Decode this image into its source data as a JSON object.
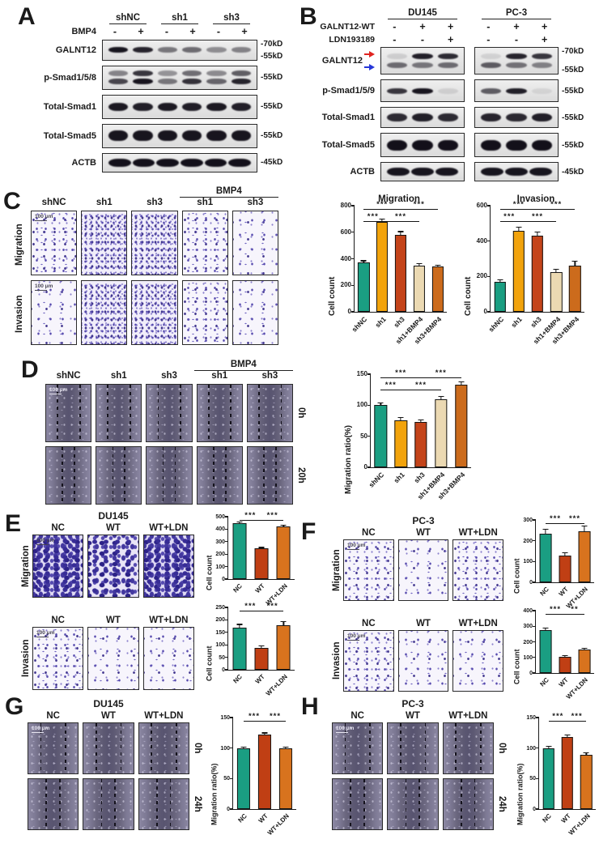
{
  "misc": {
    "scale_bar": "100 μm"
  },
  "panels": {
    "a": {
      "label": "A",
      "groups": [
        "shNC",
        "sh1",
        "sh3"
      ],
      "treatment": {
        "label": "BMP4",
        "values": [
          "-",
          "+",
          "-",
          "+",
          "-",
          "+"
        ]
      },
      "rows": [
        {
          "name": "GALNT12",
          "markers": [
            "-70kD",
            "-55kD"
          ],
          "bands": [
            [
              0.95,
              0.88,
              0.5,
              0.55,
              0.4,
              0.45
            ]
          ]
        },
        {
          "name": "p-Smad1/5/8",
          "markers": [
            "-55kD"
          ],
          "bands": [
            [
              0.45,
              0.8,
              0.38,
              0.55,
              0.42,
              0.62
            ],
            [
              0.72,
              0.95,
              0.5,
              0.82,
              0.58,
              0.88
            ]
          ]
        },
        {
          "name": "Total-Smad1",
          "markers": [
            "-55kD"
          ],
          "bands": [
            [
              0.93,
              0.9,
              0.93,
              0.91,
              0.93,
              0.9
            ]
          ]
        },
        {
          "name": "Total-Smad5",
          "markers": [
            "-55kD"
          ],
          "bands": [
            [
              0.95,
              0.95,
              0.95,
              0.95,
              0.95,
              0.95
            ]
          ]
        },
        {
          "name": "ACTB",
          "markers": [
            "-45kD"
          ],
          "bands": [
            [
              0.97,
              0.97,
              0.97,
              0.97,
              0.97,
              0.97
            ]
          ]
        }
      ]
    },
    "b": {
      "label": "B",
      "groups": [
        "DU145",
        "PC-3"
      ],
      "treatments": [
        {
          "label": "GALNT12-WT",
          "values": [
            "-",
            "+",
            "+",
            "-",
            "+",
            "+"
          ]
        },
        {
          "label": "LDN193189",
          "values": [
            "-",
            "-",
            "+",
            "-",
            "-",
            "+"
          ]
        }
      ],
      "arrows": [
        {
          "name": "red-arrow",
          "color": "#e02420"
        },
        {
          "name": "blue-arrow",
          "color": "#2637d8"
        }
      ],
      "rows": [
        {
          "name": "GALNT12",
          "markers": [
            "-70kD",
            "-55kD"
          ],
          "blots": [
            [
              [
                0.12,
                0.9,
                0.85
              ],
              [
                0.55,
                0.5,
                0.55
              ]
            ],
            [
              [
                0.1,
                0.88,
                0.8
              ],
              [
                0.62,
                0.52,
                0.45
              ]
            ]
          ]
        },
        {
          "name": "p-Smad1/5/9",
          "markers": [
            "-55kD"
          ],
          "blots": [
            [
              [
                0.8,
                0.95,
                0.1
              ]
            ],
            [
              [
                0.62,
                0.9,
                0.08
              ]
            ]
          ]
        },
        {
          "name": "Total-Smad1",
          "markers": [
            "-55kD"
          ],
          "blots": [
            [
              [
                0.85,
                0.9,
                0.85
              ]
            ],
            [
              [
                0.88,
                0.86,
                0.9
              ]
            ]
          ]
        },
        {
          "name": "Total-Smad5",
          "markers": [
            "-55kD"
          ],
          "blots": [
            [
              [
                0.97,
                0.97,
                0.97
              ]
            ],
            [
              [
                0.97,
                0.97,
                0.97
              ]
            ]
          ]
        },
        {
          "name": "ACTB",
          "markers": [
            "-45kD"
          ],
          "blots": [
            [
              [
                0.95,
                0.95,
                0.95
              ]
            ],
            [
              [
                0.95,
                0.95,
                0.95
              ]
            ]
          ]
        }
      ]
    },
    "c": {
      "label": "C",
      "group": "BMP4",
      "cols": [
        "shNC",
        "sh1",
        "sh3",
        "sh1",
        "sh3"
      ],
      "row_labels": [
        "Migration",
        "Invasion"
      ]
    },
    "d": {
      "label": "D",
      "group": "BMP4",
      "cols": [
        "shNC",
        "sh1",
        "sh3",
        "sh1",
        "sh3"
      ],
      "row_labels": [
        "0h",
        "20h"
      ]
    },
    "e": {
      "label": "E",
      "title": "DU145",
      "cols": [
        "NC",
        "WT",
        "WT+LDN"
      ],
      "row_labels": [
        "Migration",
        "Invasion"
      ]
    },
    "f": {
      "label": "F",
      "title": "PC-3",
      "cols": [
        "NC",
        "WT",
        "WT+LDN"
      ],
      "row_labels": [
        "Migration",
        "Invasion"
      ]
    },
    "g": {
      "label": "G",
      "title": "DU145",
      "cols": [
        "NC",
        "WT",
        "WT+LDN"
      ],
      "row_labels": [
        "0h",
        "24h"
      ]
    },
    "h": {
      "label": "H",
      "title": "PC-3",
      "cols": [
        "NC",
        "WT",
        "WT+LDN"
      ],
      "row_labels": [
        "0h",
        "24h"
      ]
    }
  },
  "charts": {
    "c_migration": {
      "type": "bar",
      "title": "Migration",
      "ylabel": "Cell count",
      "ymax": 800,
      "yticks": [
        0,
        200,
        400,
        600,
        800
      ],
      "categories": [
        "shNC",
        "sh1",
        "sh3",
        "sh1+BMP4",
        "sh3+BMP4"
      ],
      "values": [
        370,
        680,
        580,
        350,
        340
      ],
      "errors": [
        15,
        18,
        25,
        12,
        10
      ],
      "colors": [
        "#1A9E82",
        "#F2A30B",
        "#C4441A",
        "#EBD9B2",
        "#CC6B1C"
      ],
      "sig": [
        {
          "a": 0,
          "b": 1,
          "label": "***",
          "row": 0
        },
        {
          "a": 1,
          "b": 3,
          "label": "***",
          "row": 0
        },
        {
          "a": 0,
          "b": 2,
          "label": "***",
          "row": 1
        },
        {
          "a": 2,
          "b": 4,
          "label": "***",
          "row": 1
        }
      ]
    },
    "c_invasion": {
      "type": "bar",
      "title": "Invasion",
      "ylabel": "Cell count",
      "ymax": 600,
      "yticks": [
        0,
        200,
        400,
        600
      ],
      "categories": [
        "shNC",
        "sh1",
        "sh3",
        "sh1+BMP4",
        "sh3+BMP4"
      ],
      "values": [
        170,
        460,
        430,
        225,
        260
      ],
      "errors": [
        12,
        20,
        22,
        15,
        28
      ],
      "colors": [
        "#1A9E82",
        "#F2A30B",
        "#C4441A",
        "#EBD9B2",
        "#CC6B1C"
      ],
      "sig": [
        {
          "a": 0,
          "b": 1,
          "label": "***",
          "row": 0
        },
        {
          "a": 1,
          "b": 3,
          "label": "***",
          "row": 0
        },
        {
          "a": 0,
          "b": 2,
          "label": "***",
          "row": 1
        },
        {
          "a": 2,
          "b": 4,
          "label": "***",
          "row": 1
        }
      ]
    },
    "d_ratio": {
      "type": "bar",
      "ylabel": "Migration ratio(%)",
      "ymax": 150,
      "yticks": [
        0,
        50,
        100,
        150
      ],
      "categories": [
        "shNC",
        "sh1",
        "sh3",
        "sh1+BMP4",
        "sh3+BMP4"
      ],
      "values": [
        100,
        76,
        73,
        110,
        133
      ],
      "errors": [
        4,
        4,
        3,
        4,
        5
      ],
      "colors": [
        "#1A9E82",
        "#F2A30B",
        "#C4441A",
        "#EBD9B2",
        "#CC6B1C"
      ],
      "sig": [
        {
          "a": 0,
          "b": 1,
          "label": "***",
          "row": 0
        },
        {
          "a": 1,
          "b": 3,
          "label": "***",
          "row": 0
        },
        {
          "a": 0,
          "b": 2,
          "label": "***",
          "row": 1
        },
        {
          "a": 2,
          "b": 4,
          "label": "***",
          "row": 1
        }
      ]
    },
    "e_migration": {
      "type": "bar",
      "ylabel": "Cell count",
      "ymax": 500,
      "yticks": [
        0,
        100,
        200,
        300,
        400,
        500
      ],
      "categories": [
        "NC",
        "WT",
        "WT+LDN"
      ],
      "values": [
        450,
        245,
        420
      ],
      "errors": [
        10,
        8,
        10
      ],
      "colors": [
        "#1A9E82",
        "#C03F14",
        "#D8731E"
      ],
      "sig": [
        {
          "a": 0,
          "b": 1,
          "label": "***",
          "row": 0
        },
        {
          "a": 1,
          "b": 2,
          "label": "***",
          "row": 0
        }
      ]
    },
    "e_invasion": {
      "type": "bar",
      "ylabel": "Cell count",
      "ymax": 250,
      "yticks": [
        0,
        50,
        100,
        150,
        200,
        250
      ],
      "categories": [
        "NC",
        "WT",
        "WT+LDN"
      ],
      "values": [
        170,
        88,
        178
      ],
      "errors": [
        12,
        8,
        15
      ],
      "colors": [
        "#1A9E82",
        "#C03F14",
        "#D8731E"
      ],
      "sig": [
        {
          "a": 0,
          "b": 1,
          "label": "***",
          "row": 0
        },
        {
          "a": 1,
          "b": 2,
          "label": "***",
          "row": 0
        }
      ]
    },
    "f_migration": {
      "type": "bar",
      "ylabel": "Cell count",
      "ymax": 300,
      "yticks": [
        0,
        100,
        200,
        300
      ],
      "categories": [
        "NC",
        "WT",
        "WT+LDN"
      ],
      "values": [
        235,
        130,
        245
      ],
      "errors": [
        20,
        12,
        25
      ],
      "colors": [
        "#1A9E82",
        "#C03F14",
        "#D8731E"
      ],
      "sig": [
        {
          "a": 0,
          "b": 1,
          "label": "***",
          "row": 0
        },
        {
          "a": 1,
          "b": 2,
          "label": "***",
          "row": 0
        }
      ]
    },
    "f_invasion": {
      "type": "bar",
      "ylabel": "Cell count",
      "ymax": 400,
      "yticks": [
        0,
        100,
        200,
        300,
        400
      ],
      "categories": [
        "NC",
        "WT",
        "WT+LDN"
      ],
      "values": [
        278,
        102,
        150
      ],
      "errors": [
        10,
        10,
        8
      ],
      "colors": [
        "#1A9E82",
        "#C03F14",
        "#D8731E"
      ],
      "sig": [
        {
          "a": 0,
          "b": 1,
          "label": "***",
          "row": 0
        },
        {
          "a": 1,
          "b": 2,
          "label": "**",
          "row": 0
        }
      ]
    },
    "g_ratio": {
      "type": "bar",
      "ylabel": "Migration ratio(%)",
      "ymax": 150,
      "yticks": [
        0,
        50,
        100,
        150
      ],
      "categories": [
        "NC",
        "WT",
        "WT+LDN"
      ],
      "values": [
        100,
        122,
        100
      ],
      "errors": [
        2,
        3,
        2
      ],
      "colors": [
        "#1A9E82",
        "#C03F14",
        "#D8731E"
      ],
      "sig": [
        {
          "a": 0,
          "b": 1,
          "label": "***",
          "row": 0
        },
        {
          "a": 1,
          "b": 2,
          "label": "***",
          "row": 0
        }
      ]
    },
    "h_ratio": {
      "type": "bar",
      "ylabel": "Migration ratio(%)",
      "ymax": 150,
      "yticks": [
        0,
        50,
        100,
        150
      ],
      "categories": [
        "NC",
        "WT",
        "WT+LDN"
      ],
      "values": [
        100,
        118,
        89
      ],
      "errors": [
        3,
        4,
        3
      ],
      "colors": [
        "#1A9E82",
        "#C03F14",
        "#D8731E"
      ],
      "sig": [
        {
          "a": 0,
          "b": 1,
          "label": "***",
          "row": 0
        },
        {
          "a": 1,
          "b": 2,
          "label": "***",
          "row": 0
        }
      ]
    }
  }
}
